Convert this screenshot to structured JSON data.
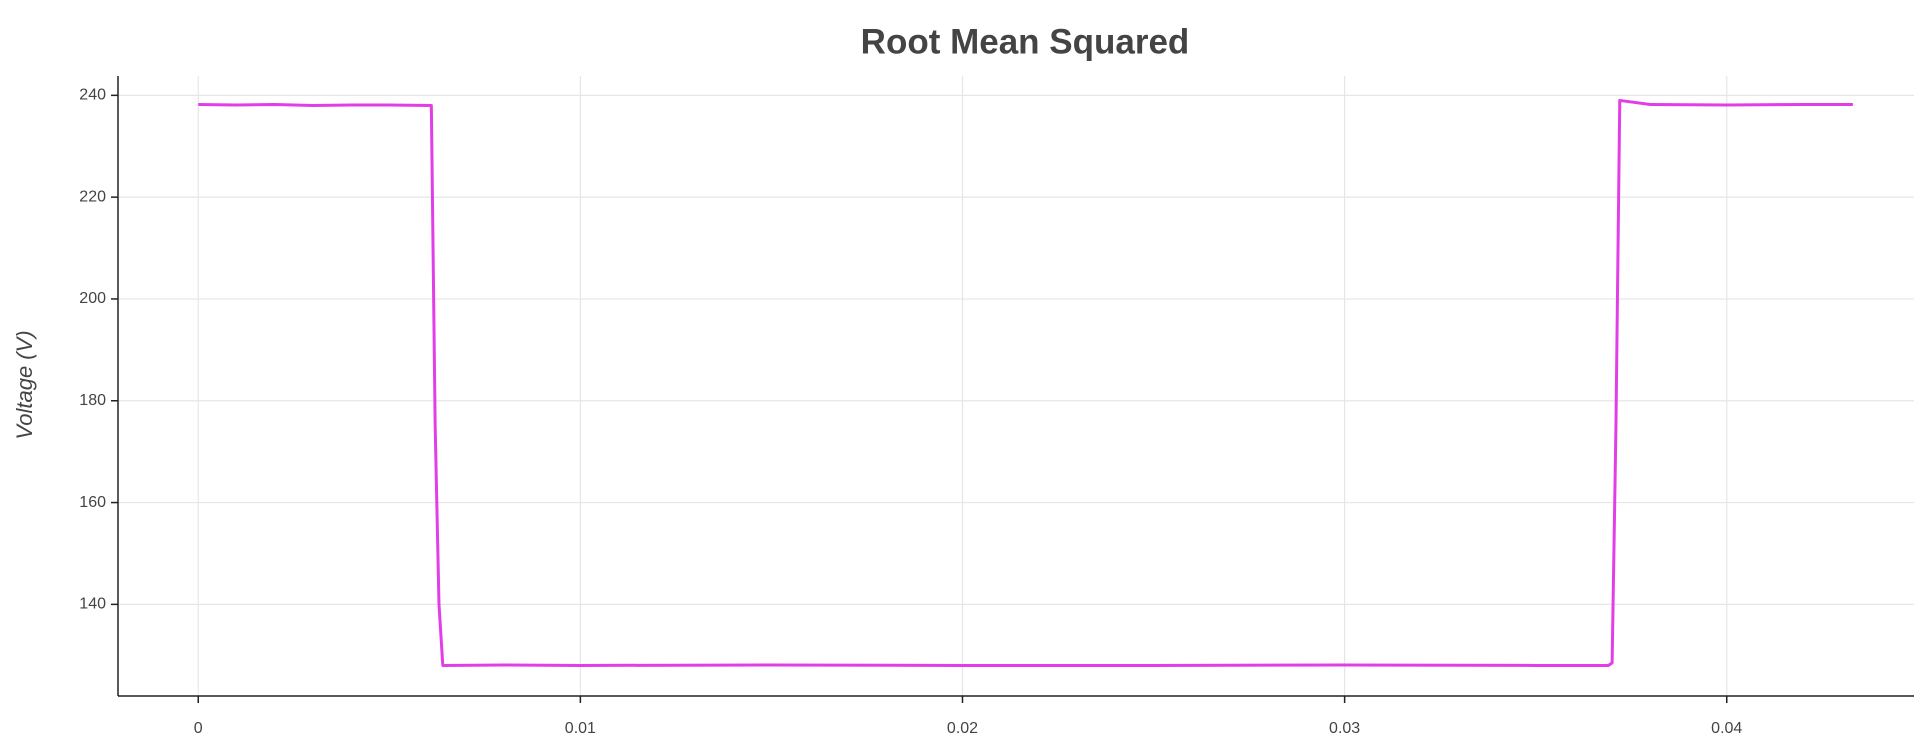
{
  "chart_data": {
    "type": "line",
    "title": "Root Mean Squared",
    "y_label": "Voltage (V)",
    "x": [
      0,
      0.001,
      0.002,
      0.003,
      0.004,
      0.005,
      0.0061,
      0.0062,
      0.0063,
      0.0064,
      0.008,
      0.01,
      0.015,
      0.02,
      0.025,
      0.03,
      0.035,
      0.0369,
      0.037,
      0.0371,
      0.0372,
      0.038,
      0.04,
      0.042,
      0.0433
    ],
    "series": [
      {
        "color": "#e23ee8",
        "values": [
          238.2,
          238.1,
          238.2,
          238,
          238.1,
          238.1,
          238,
          175,
          140,
          128,
          128.1,
          128,
          128.1,
          128,
          128,
          128.1,
          128,
          128,
          128.5,
          175,
          239,
          238.2,
          238.1,
          238.2,
          238.2
        ]
      }
    ],
    "xlim": [
      -0.0021,
      0.0449
    ],
    "ylim": [
      122,
      243.8
    ],
    "xticks": [
      0,
      0.01,
      0.02,
      0.03,
      0.04
    ],
    "yticks": [
      140,
      160,
      180,
      200,
      220,
      240
    ],
    "grid": true
  }
}
